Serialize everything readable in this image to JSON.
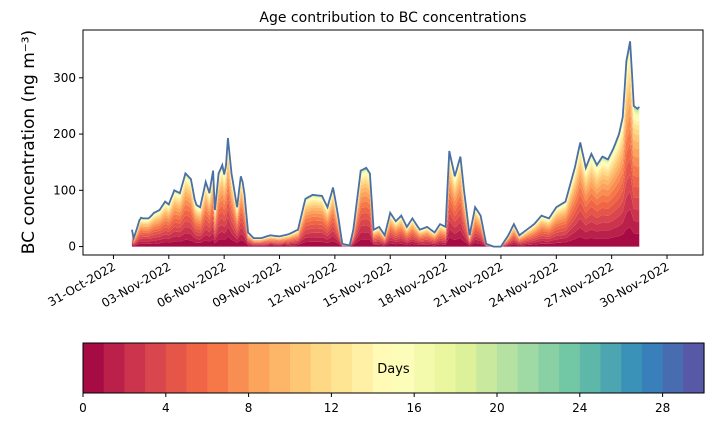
{
  "chart_data": [
    {
      "type": "area",
      "stacked": true,
      "title": "Age contribution to BC concentrations",
      "ylabel": "BC concentration (ng m⁻³)",
      "xlabel": "",
      "x_start": "2022-11-01T00:00",
      "x_step_hours": 6,
      "xlim_days": [
        -1.65,
        31.95
      ],
      "ylim": [
        -15,
        385
      ],
      "yticks": [
        0,
        100,
        200,
        300
      ],
      "xticks": [
        {
          "day": 0,
          "label": "31-Oct-2022"
        },
        {
          "day": 3,
          "label": "03-Nov-2022"
        },
        {
          "day": 6,
          "label": "06-Nov-2022"
        },
        {
          "day": 9,
          "label": "09-Nov-2022"
        },
        {
          "day": 12,
          "label": "12-Nov-2022"
        },
        {
          "day": 15,
          "label": "15-Nov-2022"
        },
        {
          "day": 18,
          "label": "18-Nov-2022"
        },
        {
          "day": 21,
          "label": "21-Nov-2022"
        },
        {
          "day": 24,
          "label": "24-Nov-2022"
        },
        {
          "day": 27,
          "label": "27-Nov-2022"
        },
        {
          "day": 30,
          "label": "30-Nov-2022"
        }
      ],
      "total_series": [
        {
          "day": 1.0,
          "value": 30
        },
        {
          "day": 1.1,
          "value": 15
        },
        {
          "day": 1.3,
          "value": 35
        },
        {
          "day": 1.45,
          "value": 52
        },
        {
          "day": 1.6,
          "value": 50
        },
        {
          "day": 1.9,
          "value": 50
        },
        {
          "day": 2.2,
          "value": 60
        },
        {
          "day": 2.5,
          "value": 65
        },
        {
          "day": 2.8,
          "value": 80
        },
        {
          "day": 3.0,
          "value": 75
        },
        {
          "day": 3.3,
          "value": 100
        },
        {
          "day": 3.6,
          "value": 95
        },
        {
          "day": 3.9,
          "value": 130
        },
        {
          "day": 4.2,
          "value": 120
        },
        {
          "day": 4.45,
          "value": 75
        },
        {
          "day": 4.7,
          "value": 70
        },
        {
          "day": 5.0,
          "value": 115
        },
        {
          "day": 5.2,
          "value": 95
        },
        {
          "day": 5.4,
          "value": 135
        },
        {
          "day": 5.5,
          "value": 65
        },
        {
          "day": 5.7,
          "value": 130
        },
        {
          "day": 5.9,
          "value": 145
        },
        {
          "day": 6.05,
          "value": 120
        },
        {
          "day": 6.2,
          "value": 193
        },
        {
          "day": 6.4,
          "value": 130
        },
        {
          "day": 6.7,
          "value": 70
        },
        {
          "day": 6.9,
          "value": 125
        },
        {
          "day": 7.05,
          "value": 110
        },
        {
          "day": 7.3,
          "value": 25
        },
        {
          "day": 7.6,
          "value": 15
        },
        {
          "day": 8.0,
          "value": 15
        },
        {
          "day": 8.5,
          "value": 20
        },
        {
          "day": 9.0,
          "value": 18
        },
        {
          "day": 9.5,
          "value": 22
        },
        {
          "day": 10.0,
          "value": 30
        },
        {
          "day": 10.4,
          "value": 85
        },
        {
          "day": 10.8,
          "value": 92
        },
        {
          "day": 11.3,
          "value": 90
        },
        {
          "day": 11.6,
          "value": 70
        },
        {
          "day": 11.9,
          "value": 105
        },
        {
          "day": 12.15,
          "value": 60
        },
        {
          "day": 12.4,
          "value": 5
        },
        {
          "day": 12.8,
          "value": 2
        },
        {
          "day": 13.0,
          "value": 30
        },
        {
          "day": 13.4,
          "value": 135
        },
        {
          "day": 13.7,
          "value": 140
        },
        {
          "day": 13.9,
          "value": 130
        },
        {
          "day": 14.1,
          "value": 30
        },
        {
          "day": 14.4,
          "value": 35
        },
        {
          "day": 14.7,
          "value": 20
        },
        {
          "day": 15.0,
          "value": 60
        },
        {
          "day": 15.3,
          "value": 45
        },
        {
          "day": 15.6,
          "value": 55
        },
        {
          "day": 15.9,
          "value": 35
        },
        {
          "day": 16.2,
          "value": 50
        },
        {
          "day": 16.6,
          "value": 30
        },
        {
          "day": 17.0,
          "value": 35
        },
        {
          "day": 17.4,
          "value": 25
        },
        {
          "day": 17.7,
          "value": 40
        },
        {
          "day": 18.0,
          "value": 35
        },
        {
          "day": 18.2,
          "value": 170
        },
        {
          "day": 18.5,
          "value": 125
        },
        {
          "day": 18.8,
          "value": 160
        },
        {
          "day": 19.0,
          "value": 100
        },
        {
          "day": 19.3,
          "value": 20
        },
        {
          "day": 19.6,
          "value": 70
        },
        {
          "day": 19.9,
          "value": 55
        },
        {
          "day": 20.2,
          "value": 5
        },
        {
          "day": 20.6,
          "value": 0
        },
        {
          "day": 21.0,
          "value": 0
        },
        {
          "day": 21.4,
          "value": 20
        },
        {
          "day": 21.7,
          "value": 40
        },
        {
          "day": 22.0,
          "value": 20
        },
        {
          "day": 22.4,
          "value": 30
        },
        {
          "day": 22.8,
          "value": 40
        },
        {
          "day": 23.2,
          "value": 55
        },
        {
          "day": 23.6,
          "value": 50
        },
        {
          "day": 24.0,
          "value": 70
        },
        {
          "day": 24.5,
          "value": 80
        },
        {
          "day": 25.0,
          "value": 140
        },
        {
          "day": 25.3,
          "value": 185
        },
        {
          "day": 25.6,
          "value": 140
        },
        {
          "day": 25.9,
          "value": 165
        },
        {
          "day": 26.2,
          "value": 145
        },
        {
          "day": 26.5,
          "value": 160
        },
        {
          "day": 26.8,
          "value": 155
        },
        {
          "day": 27.1,
          "value": 175
        },
        {
          "day": 27.4,
          "value": 200
        },
        {
          "day": 27.6,
          "value": 230
        },
        {
          "day": 27.8,
          "value": 330
        },
        {
          "day": 28.0,
          "value": 365
        },
        {
          "day": 28.2,
          "value": 250
        },
        {
          "day": 28.4,
          "value": 245
        },
        {
          "day": 28.55,
          "value": 250
        }
      ],
      "age_layers": 30,
      "age_layer_weights": [
        1.3,
        1.25,
        1.2,
        1.15,
        1.1,
        1.05,
        1.0,
        0.95,
        0.85,
        0.75,
        0.65,
        0.55,
        0.45,
        0.38,
        0.3,
        0.24,
        0.18,
        0.14,
        0.1,
        0.08,
        0.06,
        0.05,
        0.04,
        0.03,
        0.025,
        0.02,
        0.015,
        0.01,
        0.008,
        0.006
      ],
      "colorscale": [
        "#9e0142",
        "#d53e4f",
        "#f46d43",
        "#fdae61",
        "#fee08b",
        "#ffffbf",
        "#e6f598",
        "#abdda4",
        "#66c2a5",
        "#3288bd",
        "#5e4fa2"
      ],
      "total_line_color": "#4a6fa5"
    },
    {
      "type": "colorbar",
      "label": "Days",
      "range": [
        0,
        30
      ],
      "ticks": [
        0,
        4,
        8,
        12,
        16,
        20,
        24,
        28
      ],
      "segments": 30,
      "orientation": "horizontal"
    }
  ]
}
